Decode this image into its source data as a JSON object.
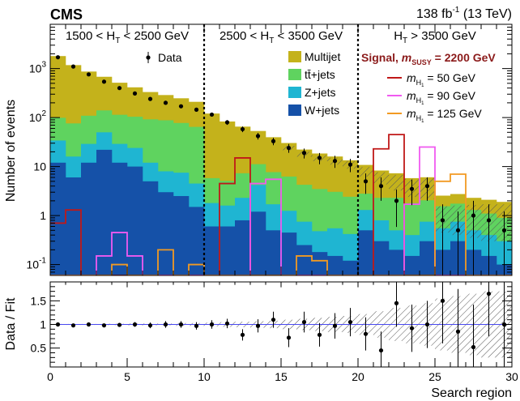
{
  "header": {
    "experiment": "CMS",
    "lumi_prefix": "138 fb",
    "lumi_exp": "-1",
    "lumi_suffix": " (13 TeV)"
  },
  "colors": {
    "multijet": "#c4b21b",
    "ttjets": "#5fd35f",
    "zjets": "#1fb5d2",
    "wjets": "#1551a8",
    "sig50": "#c01818",
    "sig90": "#f05af0",
    "sig125": "#f29a22",
    "fitline": "#4a4af0"
  },
  "chart_data": [
    {
      "type": "bar",
      "stacked": true,
      "log_scale_y": true,
      "x_bins": [
        0,
        1,
        2,
        3,
        4,
        5,
        6,
        7,
        8,
        9,
        10,
        11,
        12,
        13,
        14,
        15,
        16,
        17,
        18,
        19,
        20,
        21,
        22,
        23,
        24,
        25,
        26,
        27,
        28,
        29
      ],
      "xlim": [
        0,
        30
      ],
      "ylim": [
        0.06,
        8000
      ],
      "ylabel": "Number of events",
      "y_ticks": [
        {
          "v": 0.1,
          "b": "10",
          "e": "-1"
        },
        {
          "v": 1,
          "b": "1",
          "e": ""
        },
        {
          "v": 10,
          "b": "10",
          "e": ""
        },
        {
          "v": 100,
          "b": "10",
          "e": "2"
        },
        {
          "v": 1000,
          "b": "10",
          "e": "3"
        }
      ],
      "region_labels": [
        {
          "pre": "1500 < H",
          "sub": "T",
          "post": " < 2500 GeV"
        },
        {
          "pre": "2500 < H",
          "sub": "T",
          "post": " < 3500 GeV"
        },
        {
          "pre": "H",
          "sub": "T",
          "post": " > 3500 GeV"
        }
      ],
      "region_dividers": [
        10,
        20
      ],
      "series": [
        {
          "name": "W+jets",
          "key": "wjets",
          "values": [
            12,
            6,
            12,
            22,
            12,
            10,
            5,
            3,
            2.5,
            1.5,
            0.6,
            0.6,
            0.8,
            1.2,
            0.5,
            0.45,
            0.25,
            0.18,
            0.15,
            0.12,
            0.5,
            0.3,
            0.2,
            0.15,
            0.3,
            0.2,
            0.3,
            0.2,
            0.15,
            0.1
          ]
        },
        {
          "name": "Z+jets",
          "key": "zjets",
          "values": [
            22,
            10,
            17,
            28,
            17,
            14,
            7,
            5,
            5,
            3,
            1.2,
            1,
            1.5,
            3,
            1.2,
            0.8,
            0.5,
            0.3,
            0.4,
            0.3,
            0.8,
            0.5,
            0.3,
            0.25,
            0.45,
            0.35,
            0.45,
            0.3,
            0.25,
            0.2
          ]
        },
        {
          "name": "tt+jets",
          "key": "ttjets",
          "values": [
            65,
            60,
            80,
            90,
            85,
            80,
            80,
            80,
            70,
            60,
            4,
            3.5,
            5,
            7,
            6,
            5,
            3.5,
            3,
            2.5,
            2,
            1.5,
            1.5,
            1.8,
            1.4,
            1.3,
            1,
            1,
            0.8,
            0.7,
            0.6
          ]
        },
        {
          "name": "Multijet",
          "key": "multijet",
          "values": [
            1700,
            1100,
            760,
            540,
            400,
            310,
            240,
            200,
            170,
            145,
            115,
            78,
            58,
            42,
            32,
            24,
            18,
            15,
            13,
            11,
            8,
            6,
            5,
            4,
            4,
            1,
            1,
            1,
            1,
            1
          ]
        }
      ],
      "fit_total": [
        1700,
        1100,
        760,
        540,
        400,
        310,
        240,
        200,
        170,
        145,
        115,
        78,
        58,
        42,
        32,
        24,
        18,
        15,
        13,
        11,
        8,
        6,
        5,
        4,
        4,
        1,
        1,
        1,
        1,
        1
      ],
      "data_points": {
        "name": "Data",
        "values": [
          1700,
          1100,
          760,
          540,
          400,
          310,
          240,
          200,
          170,
          145,
          115,
          80,
          58,
          42,
          33,
          24,
          19,
          15,
          13,
          11,
          5,
          4,
          2,
          3.5,
          4,
          0.8,
          0.5,
          1,
          0.8,
          0.5
        ]
      },
      "signal_series": [
        {
          "key": "sig50",
          "label_pre": "m",
          "label_sub": "H",
          "label_subsub": "1",
          "label_post": " = 50 GeV",
          "values": [
            0.7,
            1.3,
            0.06,
            0.06,
            0.06,
            0.06,
            0.06,
            0.06,
            0.06,
            0.06,
            0.06,
            4.5,
            15,
            0.06,
            0.06,
            0.06,
            0.06,
            0.06,
            0.06,
            0.06,
            0.06,
            23,
            45,
            0.06,
            0.06,
            0.06,
            0.06,
            0.06,
            0.06,
            0.06
          ]
        },
        {
          "name": "",
          "key": "sig90",
          "label_pre": "m",
          "label_sub": "H",
          "label_subsub": "1",
          "label_post": " = 90 GeV",
          "values": [
            0.06,
            0.06,
            0.06,
            0.15,
            0.45,
            0.15,
            0.06,
            0.06,
            0.06,
            0.06,
            0.06,
            0.06,
            0.06,
            4.5,
            5.5,
            0.06,
            0.06,
            0.06,
            0.06,
            0.06,
            0.06,
            0.06,
            0.06,
            1.7,
            25,
            0.06,
            0.06,
            0.06,
            0.06,
            0.06
          ]
        },
        {
          "key": "sig125",
          "label_pre": "m",
          "label_sub": "H",
          "label_subsub": "1",
          "label_post": " = 125 GeV",
          "values": [
            0.06,
            0.06,
            0.06,
            0.06,
            0.1,
            0.06,
            0.06,
            0.2,
            0.06,
            0.1,
            0.06,
            0.06,
            0.06,
            0.06,
            0.06,
            0.06,
            0.15,
            0.12,
            0.06,
            0.06,
            0.06,
            0.06,
            0.06,
            0.06,
            0.06,
            5,
            7,
            0.06,
            0.06,
            0.06
          ]
        }
      ],
      "legend": {
        "data_label": "Data",
        "bkg_labels": [
          "Multijet",
          "tt̄+jets",
          "Z+jets",
          "W+jets"
        ],
        "signal_title_pre": "Signal, ",
        "signal_title_m": "m",
        "signal_title_sub": "SUSY",
        "signal_title_post": " = 2200 GeV"
      }
    },
    {
      "type": "scatter",
      "ylabel": "Data / Fit",
      "xlabel": "Search region",
      "xlim": [
        0,
        30
      ],
      "ylim": [
        0.1,
        1.9
      ],
      "y_ticks": [
        0.5,
        1,
        1.5
      ],
      "x_ticks": [
        0,
        5,
        10,
        15,
        20,
        25,
        30
      ],
      "ratio": [
        1.0,
        0.98,
        1.0,
        0.98,
        0.99,
        1.0,
        0.98,
        1.0,
        1.0,
        0.97,
        1.0,
        1.02,
        0.78,
        0.97,
        1.1,
        0.72,
        1.05,
        0.78,
        0.97,
        1.05,
        0.8,
        0.45,
        1.45,
        0.92,
        1.0,
        1.5,
        0.85,
        0.52,
        1.65,
        1.0
      ],
      "ratio_err": [
        0.02,
        0.03,
        0.03,
        0.04,
        0.04,
        0.05,
        0.06,
        0.07,
        0.07,
        0.08,
        0.09,
        0.1,
        0.12,
        0.14,
        0.17,
        0.2,
        0.22,
        0.25,
        0.27,
        0.3,
        0.35,
        0.4,
        0.5,
        0.5,
        0.5,
        0.9,
        0.9,
        0.9,
        0.9,
        0.9
      ],
      "fit_band": [
        0.01,
        0.01,
        0.01,
        0.015,
        0.015,
        0.02,
        0.02,
        0.02,
        0.03,
        0.03,
        0.04,
        0.05,
        0.06,
        0.07,
        0.08,
        0.1,
        0.12,
        0.14,
        0.16,
        0.18,
        0.22,
        0.28,
        0.35,
        0.4,
        0.45,
        0.55,
        0.6,
        0.65,
        0.7,
        0.7
      ]
    }
  ]
}
